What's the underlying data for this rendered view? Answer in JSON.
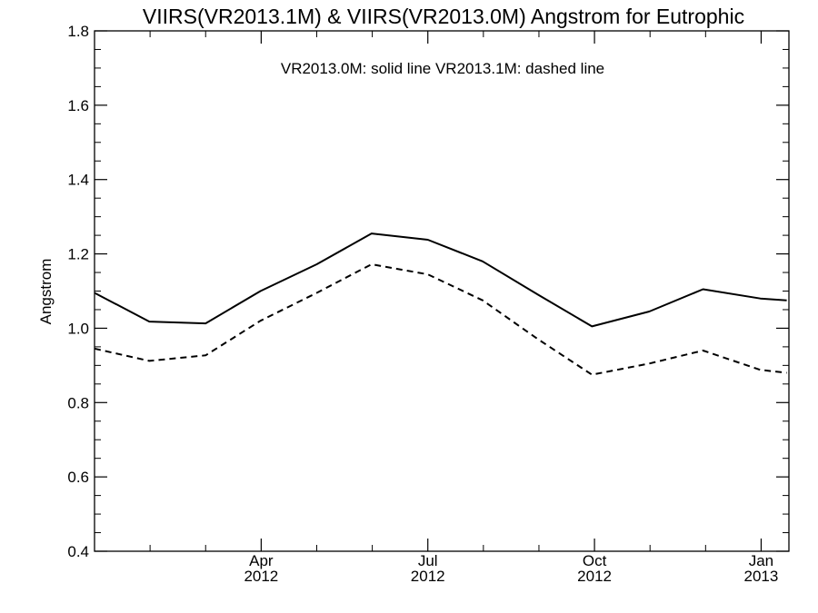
{
  "chart_data": {
    "type": "line",
    "title": "VIIRS(VR2013.1M) & VIIRS(VR2013.0M)  Angstrom for Eutrophic",
    "annotation": "VR2013.0M: solid line   VR2013.1M: dashed line",
    "xlabel": "",
    "ylabel": "Angstrom",
    "ylim": [
      0.4,
      1.8
    ],
    "yticks": [
      "0.4",
      "0.6",
      "0.8",
      "1.0",
      "1.2",
      "1.4",
      "1.6",
      "1.8"
    ],
    "xlim": [
      "2012-01",
      "2013-01.5"
    ],
    "xticks": [
      {
        "month": "Apr",
        "year": "2012",
        "date": "2012-04"
      },
      {
        "month": "Jul",
        "year": "2012",
        "date": "2012-07"
      },
      {
        "month": "Oct",
        "year": "2012",
        "date": "2012-10"
      },
      {
        "month": "Jan",
        "year": "2013",
        "date": "2013-01"
      }
    ],
    "grid": false,
    "series": [
      {
        "name": "VR2013.0M",
        "style": "solid",
        "color": "#000000",
        "x": [
          "2012-01-01",
          "2012-01-31",
          "2012-03-01",
          "2012-03-31",
          "2012-05-01",
          "2012-05-31",
          "2012-07-01",
          "2012-07-31",
          "2012-08-31",
          "2012-09-30",
          "2012-10-31",
          "2012-11-30",
          "2012-12-31",
          "2013-01-15"
        ],
        "values": [
          1.095,
          1.018,
          1.013,
          1.1,
          1.172,
          1.255,
          1.238,
          1.18,
          1.09,
          1.005,
          1.045,
          1.105,
          1.08,
          1.075
        ]
      },
      {
        "name": "VR2013.1M",
        "style": "dashed",
        "color": "#000000",
        "x": [
          "2012-01-01",
          "2012-01-31",
          "2012-03-01",
          "2012-03-31",
          "2012-05-01",
          "2012-05-31",
          "2012-07-01",
          "2012-07-31",
          "2012-08-31",
          "2012-09-30",
          "2012-10-31",
          "2012-11-30",
          "2012-12-31",
          "2013-01-15"
        ],
        "values": [
          0.945,
          0.912,
          0.927,
          1.02,
          1.095,
          1.172,
          1.145,
          1.075,
          0.97,
          0.875,
          0.905,
          0.94,
          0.888,
          0.88
        ]
      }
    ]
  }
}
